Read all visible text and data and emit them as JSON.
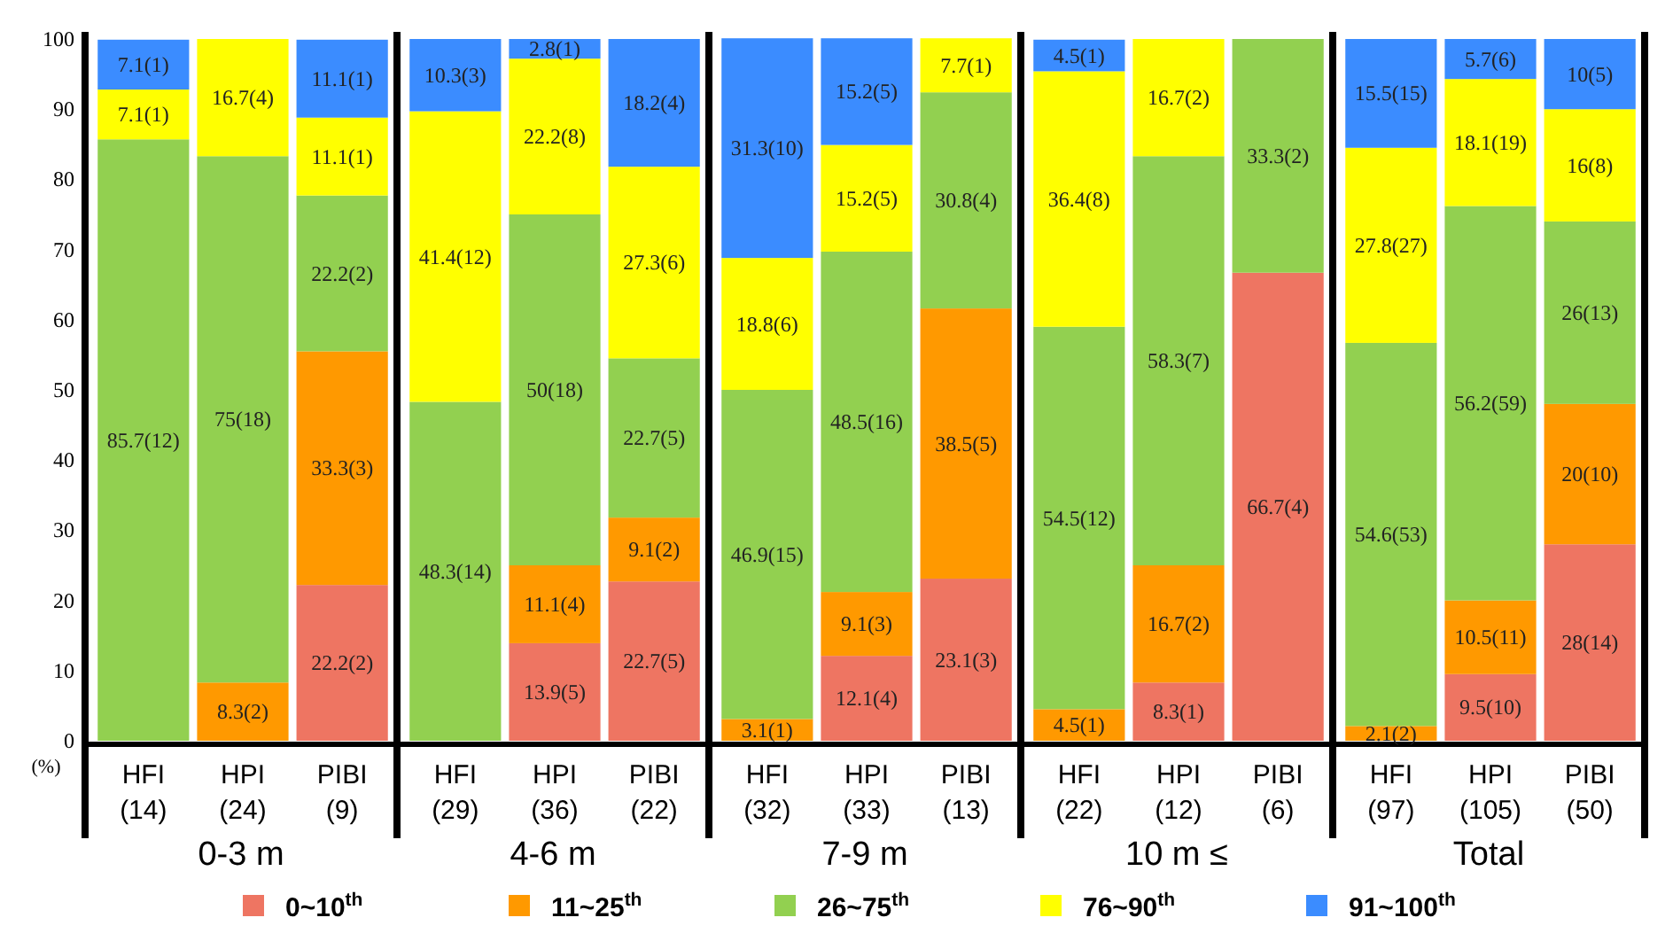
{
  "chart_data": [
    {
      "type": "bar",
      "stacked": true,
      "xlabel": "0-3 m",
      "ylabel": "(%)",
      "categories": [
        "HFI\n(14)",
        "HPI\n(24)",
        "PIBI\n(9)"
      ],
      "ylim": [
        0,
        100
      ],
      "yticks": [
        0,
        10,
        20,
        30,
        40,
        50,
        60,
        70,
        80,
        90,
        100
      ],
      "legend": "bottom",
      "series": [
        {
          "name": "0~10$^{th}$",
          "color": "#ee7562",
          "values": [
            0,
            0,
            22.2
          ],
          "value_labels": [
            null,
            null,
            "22.2(2)"
          ]
        },
        {
          "name": "11~25$^{th}$",
          "color": "#ff9900",
          "values": [
            0,
            8.3,
            33.3
          ],
          "value_labels": [
            null,
            "8.3(2)",
            "33.3(3)"
          ]
        },
        {
          "name": "26~75$^{th}$",
          "color": "#92d050",
          "values": [
            85.7,
            75,
            22.2
          ],
          "value_labels": [
            "85.7(12)",
            "75(18)",
            "22.2(2)"
          ]
        },
        {
          "name": "76~90$^{th}$",
          "color": "#ffff00",
          "values": [
            7.1,
            16.7,
            11.1
          ],
          "value_labels": [
            "7.1(1)",
            "16.7(4)",
            "11.1(1)"
          ]
        },
        {
          "name": "91~100$^{th}$",
          "color": "#3b8cff",
          "values": [
            7.1,
            0,
            11.1
          ],
          "value_labels": [
            "7.1(1)",
            null,
            "11.1(1)"
          ]
        }
      ]
    },
    {
      "type": "bar",
      "stacked": true,
      "xlabel": "4-6 m",
      "tick_labels": "x",
      "categories": [
        "HFI\n(29)",
        "HPI\n(36)",
        "PIBI\n(22)"
      ],
      "ylim": [
        0,
        100
      ],
      "series": [
        {
          "color": "#ee7562",
          "values": [
            0,
            13.9,
            22.7
          ],
          "value_labels": [
            null,
            "13.9(5)",
            "22.7(5)"
          ]
        },
        {
          "color": "#ff9900",
          "values": [
            0,
            11.1,
            9.1
          ],
          "value_labels": [
            null,
            "11.1(4)",
            "9.1(2)"
          ]
        },
        {
          "color": "#92d050",
          "values": [
            48.3,
            50,
            22.7
          ],
          "value_labels": [
            "48.3(14)",
            "50(18)",
            "22.7(5)"
          ]
        },
        {
          "color": "#ffff00",
          "values": [
            41.4,
            22.2,
            27.3
          ],
          "value_labels": [
            "41.4(12)",
            "22.2(8)",
            "27.3(6)"
          ]
        },
        {
          "color": "#3b8cff",
          "values": [
            10.3,
            2.8,
            18.2
          ],
          "value_labels": [
            "10.3(3)",
            "2.8(1)",
            "18.2(4)"
          ]
        }
      ]
    },
    {
      "type": "bar",
      "stacked": true,
      "xlabel": "7-9 m",
      "tick_labels": "x",
      "categories": [
        "HFI\n(32)",
        "HPI\n(33)",
        "PIBI\n(13)"
      ],
      "ylim": [
        0,
        100
      ],
      "series": [
        {
          "color": "#ee7562",
          "values": [
            0,
            12.1,
            23.1
          ],
          "value_labels": [
            null,
            "12.1(4)",
            "23.1(3)"
          ]
        },
        {
          "color": "#ff9900",
          "values": [
            3.1,
            9.1,
            38.5
          ],
          "value_labels": [
            "3.1(1)",
            "9.1(3)",
            "38.5(5)"
          ]
        },
        {
          "color": "#92d050",
          "values": [
            46.9,
            48.5,
            30.8
          ],
          "value_labels": [
            "46.9(15)",
            "48.5(16)",
            "30.8(4)"
          ]
        },
        {
          "color": "#ffff00",
          "values": [
            18.8,
            15.2,
            7.7
          ],
          "value_labels": [
            "18.8(6)",
            "15.2(5)",
            "7.7(1)"
          ]
        },
        {
          "color": "#3b8cff",
          "values": [
            31.3,
            15.2,
            0
          ],
          "value_labels": [
            "31.3(10)",
            "15.2(5)",
            null
          ]
        }
      ]
    },
    {
      "type": "bar",
      "stacked": true,
      "xlabel": "10 m ≤",
      "tick_labels": "x",
      "categories": [
        "HFI\n(22)",
        "HPI\n(12)",
        "PIBI\n(6)"
      ],
      "ylim": [
        0,
        100
      ],
      "series": [
        {
          "color": "#ee7562",
          "values": [
            0,
            8.3,
            66.7
          ],
          "value_labels": [
            null,
            "8.3(1)",
            "66.7(4)"
          ]
        },
        {
          "color": "#ff9900",
          "values": [
            4.5,
            16.7,
            0
          ],
          "value_labels": [
            "4.5(1)",
            "16.7(2)",
            null
          ]
        },
        {
          "color": "#92d050",
          "values": [
            54.5,
            58.3,
            33.3
          ],
          "value_labels": [
            "54.5(12)",
            "58.3(7)",
            "33.3(2)"
          ]
        },
        {
          "color": "#ffff00",
          "values": [
            36.4,
            16.7,
            0
          ],
          "value_labels": [
            "36.4(8)",
            "16.7(2)",
            null
          ]
        },
        {
          "color": "#3b8cff",
          "values": [
            4.5,
            0,
            0
          ],
          "value_labels": [
            "4.5(1)",
            null,
            null
          ]
        }
      ]
    },
    {
      "type": "bar",
      "stacked": true,
      "xlabel": "Total",
      "tick_labels": "x",
      "categories": [
        "HFI\n(97)",
        "HPI\n(105)",
        "PIBI\n(50)"
      ],
      "ylim": [
        0,
        100
      ],
      "series": [
        {
          "color": "#ee7562",
          "values": [
            0,
            9.5,
            28
          ],
          "value_labels": [
            null,
            "9.5(10)",
            "28(14)"
          ]
        },
        {
          "color": "#ff9900",
          "values": [
            2.1,
            10.5,
            20
          ],
          "value_labels": [
            "2.1(2)",
            "10.5(11)",
            "20(10)"
          ]
        },
        {
          "color": "#92d050",
          "values": [
            54.6,
            56.2,
            26
          ],
          "value_labels": [
            "54.6(53)",
            "56.2(59)",
            "26(13)"
          ]
        },
        {
          "color": "#ffff00",
          "values": [
            27.8,
            18.1,
            16
          ],
          "value_labels": [
            "27.8(27)",
            "18.1(19)",
            "16(8)"
          ]
        },
        {
          "color": "#3b8cff",
          "values": [
            15.5,
            5.7,
            10
          ],
          "value_labels": [
            "15.5(15)",
            "5.7(6)",
            "10(5)"
          ]
        }
      ]
    }
  ]
}
